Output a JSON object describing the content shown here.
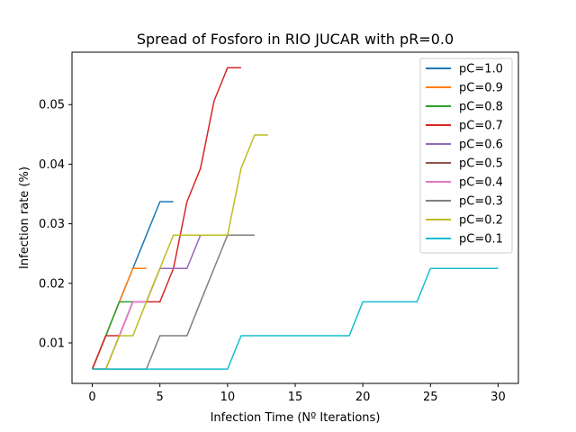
{
  "chart_data": {
    "type": "line",
    "title": "Spread of Fosforo in RIO JUCAR with pR=0.0",
    "xlabel": "Infection Time (Nº Iterations)",
    "ylabel": "Infection rate (%)",
    "xlim": [
      -1.5,
      31.5
    ],
    "ylim": [
      0.0032,
      0.0588
    ],
    "xticks": [
      0,
      5,
      10,
      15,
      20,
      25,
      30
    ],
    "yticks": [
      0.01,
      0.02,
      0.03,
      0.04,
      0.05
    ],
    "ytick_labels": [
      "0.01",
      "0.02",
      "0.03",
      "0.04",
      "0.05"
    ],
    "grid": false,
    "legend_position": "top-right",
    "series": [
      {
        "name": "pC=1.0",
        "color": "#1f77b4",
        "x": [
          0,
          1,
          2,
          3,
          4,
          5,
          6
        ],
        "y": [
          0.0056,
          0.0112,
          0.0169,
          0.0225,
          0.0281,
          0.0337,
          0.0337
        ]
      },
      {
        "name": "pC=0.9",
        "color": "#ff7f0e",
        "x": [
          0,
          1,
          2,
          3,
          4
        ],
        "y": [
          0.0056,
          0.0112,
          0.0169,
          0.0225,
          0.0225
        ]
      },
      {
        "name": "pC=0.8",
        "color": "#2ca02c",
        "x": [
          0,
          1,
          2,
          3
        ],
        "y": [
          0.0056,
          0.0112,
          0.0169,
          0.0169
        ]
      },
      {
        "name": "pC=0.7",
        "color": "#d62728",
        "x": [
          0,
          1,
          2,
          3,
          4,
          5,
          6,
          7,
          8,
          9,
          10,
          11
        ],
        "y": [
          0.0056,
          0.0112,
          0.0112,
          0.0169,
          0.0169,
          0.0169,
          0.0225,
          0.0337,
          0.0393,
          0.0506,
          0.0562,
          0.0562
        ]
      },
      {
        "name": "pC=0.6",
        "color": "#9467bd",
        "x": [
          0,
          1,
          2,
          3,
          4,
          5,
          6,
          7,
          8
        ],
        "y": [
          0.0056,
          0.0056,
          0.0112,
          0.0169,
          0.0169,
          0.0225,
          0.0225,
          0.0225,
          0.0281
        ]
      },
      {
        "name": "pC=0.5",
        "color": "#8c564b",
        "x": [
          0,
          1
        ],
        "y": [
          0.0056,
          0.0056
        ]
      },
      {
        "name": "pC=0.4",
        "color": "#e377c2",
        "x": [
          0,
          1,
          2,
          3,
          4,
          5
        ],
        "y": [
          0.0056,
          0.0056,
          0.0112,
          0.0169,
          0.0169,
          0.0225
        ]
      },
      {
        "name": "pC=0.3",
        "color": "#7f7f7f",
        "x": [
          0,
          1,
          2,
          3,
          4,
          5,
          6,
          7,
          8,
          9,
          10,
          11,
          12
        ],
        "y": [
          0.0056,
          0.0056,
          0.0056,
          0.0056,
          0.0056,
          0.0112,
          0.0112,
          0.0112,
          0.0169,
          0.0225,
          0.0281,
          0.0281,
          0.0281
        ]
      },
      {
        "name": "pC=0.2",
        "color": "#bcbd22",
        "x": [
          0,
          1,
          2,
          3,
          4,
          5,
          6,
          7,
          8,
          9,
          10,
          11,
          12,
          13
        ],
        "y": [
          0.0056,
          0.0056,
          0.0112,
          0.0112,
          0.0169,
          0.0225,
          0.0281,
          0.0281,
          0.0281,
          0.0281,
          0.0281,
          0.0393,
          0.0449,
          0.0449
        ]
      },
      {
        "name": "pC=0.1",
        "color": "#17becf",
        "x": [
          0,
          1,
          2,
          3,
          4,
          5,
          6,
          7,
          8,
          9,
          10,
          11,
          12,
          13,
          14,
          15,
          16,
          17,
          18,
          19,
          20,
          21,
          22,
          23,
          24,
          25,
          26,
          27,
          28,
          29,
          30
        ],
        "y": [
          0.0056,
          0.0056,
          0.0056,
          0.0056,
          0.0056,
          0.0056,
          0.0056,
          0.0056,
          0.0056,
          0.0056,
          0.0056,
          0.0112,
          0.0112,
          0.0112,
          0.0112,
          0.0112,
          0.0112,
          0.0112,
          0.0112,
          0.0112,
          0.0169,
          0.0169,
          0.0169,
          0.0169,
          0.0169,
          0.0225,
          0.0225,
          0.0225,
          0.0225,
          0.0225,
          0.0225
        ]
      }
    ]
  }
}
